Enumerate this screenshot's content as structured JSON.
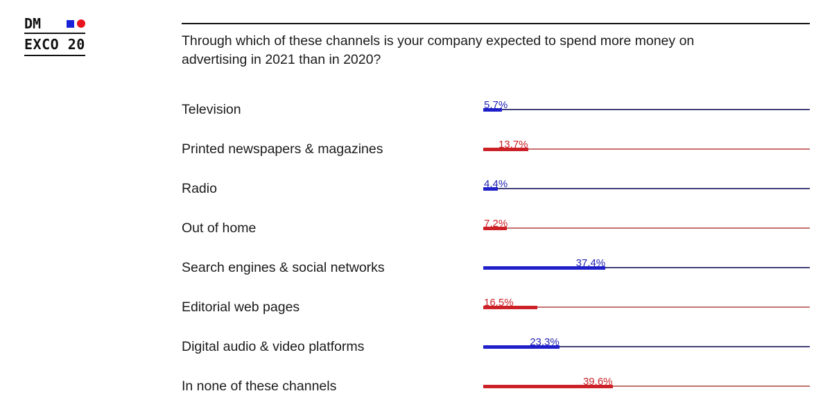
{
  "logo": {
    "line1": "DM",
    "line2": "EXCO 20",
    "square_color": "#1822d6",
    "circle_color": "#e8141d"
  },
  "header": {
    "title": "Through which of these channels is your company expected to spend more money on advertising in 2021 than in 2020?"
  },
  "palette": {
    "blue": {
      "bar": "#1f1fca",
      "track": "#3f3f77",
      "label": "#2323b4"
    },
    "red": {
      "bar": "#cc2127",
      "track": "#c4716e",
      "label": "#cb2127"
    }
  },
  "chart_data": {
    "type": "bar",
    "orientation": "horizontal",
    "title": "Through which of these channels is your company expected to spend more money on advertising in 2021 than in 2020?",
    "unit": "%",
    "xlim": [
      0,
      100
    ],
    "grid": false,
    "legend": "none",
    "categories": [
      "Television",
      "Printed newspapers & magazines",
      "Radio",
      "Out of home",
      "Search engines & social networks",
      "Editorial web pages",
      "Digital audio & video platforms",
      "In none of these channels"
    ],
    "values": [
      5.7,
      13.7,
      4.4,
      7.2,
      37.4,
      16.5,
      23.3,
      39.6
    ],
    "value_labels": [
      "5,7%",
      "13,7%",
      "4,4%",
      "7,2%",
      "37,4%",
      "16,5%",
      "23,3%",
      "39,6%"
    ],
    "bar_colors": [
      "blue",
      "red",
      "blue",
      "red",
      "blue",
      "red",
      "blue",
      "red"
    ],
    "value_label_positions": [
      "start",
      "end",
      "start",
      "start",
      "end",
      "start",
      "end",
      "end"
    ]
  }
}
